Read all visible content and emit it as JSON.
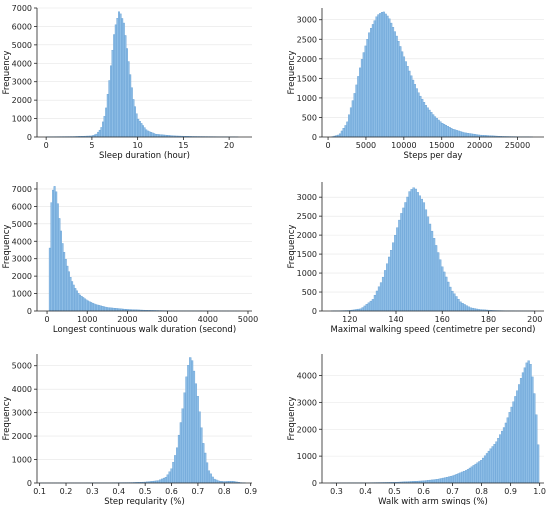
{
  "chart_data": [
    {
      "type": "bar",
      "shape": "histogram",
      "peak": 6800,
      "mode": 8.0,
      "profile": [
        {
          "x": 0,
          "y": 15
        },
        {
          "x": 3,
          "y": 25
        },
        {
          "x": 5,
          "y": 60
        },
        {
          "x": 5.5,
          "y": 150
        },
        {
          "x": 6,
          "y": 450
        },
        {
          "x": 6.5,
          "y": 1300
        },
        {
          "x": 7,
          "y": 3400
        },
        {
          "x": 7.5,
          "y": 5800
        },
        {
          "x": 8,
          "y": 6800
        },
        {
          "x": 8.5,
          "y": 6100
        },
        {
          "x": 9,
          "y": 4100
        },
        {
          "x": 9.5,
          "y": 2100
        },
        {
          "x": 10,
          "y": 1000
        },
        {
          "x": 11,
          "y": 350
        },
        {
          "x": 12,
          "y": 150
        },
        {
          "x": 14,
          "y": 60
        },
        {
          "x": 16,
          "y": 30
        },
        {
          "x": 21,
          "y": 8
        }
      ],
      "xlabel": "Sleep duration (hour)",
      "ylabel": "Frequency",
      "xlim": [
        -1,
        22.5
      ],
      "ylim": [
        0,
        7000
      ],
      "xticks": [
        0,
        5,
        10,
        15,
        20
      ],
      "yticks": [
        0,
        1000,
        2000,
        3000,
        4000,
        5000,
        6000,
        7000
      ],
      "grid": true,
      "legend": "none",
      "bar_color": "#8dbde6",
      "edge_color": "#5e9ad0"
    },
    {
      "type": "bar",
      "shape": "histogram",
      "peak": 3200,
      "mode": 7300,
      "profile": [
        {
          "x": 500,
          "y": 5
        },
        {
          "x": 1500,
          "y": 60
        },
        {
          "x": 2500,
          "y": 350
        },
        {
          "x": 3500,
          "y": 1100
        },
        {
          "x": 4500,
          "y": 2000
        },
        {
          "x": 5500,
          "y": 2700
        },
        {
          "x": 6500,
          "y": 3100
        },
        {
          "x": 7300,
          "y": 3200
        },
        {
          "x": 8000,
          "y": 3050
        },
        {
          "x": 9000,
          "y": 2600
        },
        {
          "x": 10000,
          "y": 2050
        },
        {
          "x": 11000,
          "y": 1550
        },
        {
          "x": 12000,
          "y": 1100
        },
        {
          "x": 13000,
          "y": 780
        },
        {
          "x": 14000,
          "y": 540
        },
        {
          "x": 15000,
          "y": 360
        },
        {
          "x": 16500,
          "y": 200
        },
        {
          "x": 18000,
          "y": 110
        },
        {
          "x": 20000,
          "y": 50
        },
        {
          "x": 23000,
          "y": 15
        },
        {
          "x": 27000,
          "y": 3
        }
      ],
      "xlabel": "Steps per day",
      "ylabel": "Frequency",
      "xlim": [
        -800,
        28500
      ],
      "ylim": [
        0,
        3300
      ],
      "xticks": [
        0,
        5000,
        10000,
        15000,
        20000,
        25000
      ],
      "yticks": [
        0,
        500,
        1000,
        1500,
        2000,
        2500,
        3000
      ],
      "grid": true,
      "legend": "none",
      "bar_color": "#8dbde6",
      "edge_color": "#5e9ad0"
    },
    {
      "type": "bar",
      "shape": "histogram",
      "peak": 7150,
      "mode": 200,
      "profile": [
        {
          "x": 50,
          "y": 2000
        },
        {
          "x": 100,
          "y": 6000
        },
        {
          "x": 150,
          "y": 6900
        },
        {
          "x": 200,
          "y": 7150
        },
        {
          "x": 250,
          "y": 6500
        },
        {
          "x": 300,
          "y": 5400
        },
        {
          "x": 400,
          "y": 3600
        },
        {
          "x": 500,
          "y": 2600
        },
        {
          "x": 600,
          "y": 1800
        },
        {
          "x": 700,
          "y": 1300
        },
        {
          "x": 800,
          "y": 950
        },
        {
          "x": 1000,
          "y": 600
        },
        {
          "x": 1200,
          "y": 380
        },
        {
          "x": 1500,
          "y": 200
        },
        {
          "x": 2000,
          "y": 90
        },
        {
          "x": 2500,
          "y": 40
        },
        {
          "x": 3000,
          "y": 20
        },
        {
          "x": 4000,
          "y": 8
        },
        {
          "x": 4800,
          "y": 3
        }
      ],
      "xlabel": "Longest continuous walk duration (second)",
      "ylabel": "Frequency",
      "xlim": [
        -250,
        5100
      ],
      "ylim": [
        0,
        7400
      ],
      "xticks": [
        0,
        1000,
        2000,
        3000,
        4000,
        5000
      ],
      "yticks": [
        0,
        1000,
        2000,
        3000,
        4000,
        5000,
        6000,
        7000
      ],
      "grid": true,
      "legend": "none",
      "bar_color": "#8dbde6",
      "edge_color": "#5e9ad0"
    },
    {
      "type": "bar",
      "shape": "histogram",
      "peak": 3250,
      "mode": 148,
      "profile": [
        {
          "x": 112,
          "y": 3
        },
        {
          "x": 120,
          "y": 15
        },
        {
          "x": 125,
          "y": 60
        },
        {
          "x": 130,
          "y": 300
        },
        {
          "x": 134,
          "y": 800
        },
        {
          "x": 138,
          "y": 1600
        },
        {
          "x": 142,
          "y": 2500
        },
        {
          "x": 146,
          "y": 3150
        },
        {
          "x": 148,
          "y": 3250
        },
        {
          "x": 152,
          "y": 2850
        },
        {
          "x": 156,
          "y": 2000
        },
        {
          "x": 160,
          "y": 1150
        },
        {
          "x": 164,
          "y": 550
        },
        {
          "x": 168,
          "y": 230
        },
        {
          "x": 172,
          "y": 90
        },
        {
          "x": 176,
          "y": 40
        },
        {
          "x": 182,
          "y": 15
        },
        {
          "x": 190,
          "y": 5
        },
        {
          "x": 200,
          "y": 2
        }
      ],
      "xlabel": "Maximal walking speed (centimetre per second)",
      "ylabel": "Frequency",
      "xlim": [
        108,
        204
      ],
      "ylim": [
        0,
        3400
      ],
      "xticks": [
        120,
        140,
        160,
        180,
        200
      ],
      "yticks": [
        0,
        500,
        1000,
        1500,
        2000,
        2500,
        3000
      ],
      "grid": true,
      "legend": "none",
      "bar_color": "#8dbde6",
      "edge_color": "#5e9ad0"
    },
    {
      "type": "bar",
      "shape": "histogram",
      "peak": 5350,
      "mode": 0.672,
      "profile": [
        {
          "x": 0.1,
          "y": 3
        },
        {
          "x": 0.3,
          "y": 8
        },
        {
          "x": 0.45,
          "y": 20
        },
        {
          "x": 0.5,
          "y": 40
        },
        {
          "x": 0.55,
          "y": 100
        },
        {
          "x": 0.58,
          "y": 250
        },
        {
          "x": 0.6,
          "y": 600
        },
        {
          "x": 0.62,
          "y": 1400
        },
        {
          "x": 0.64,
          "y": 2900
        },
        {
          "x": 0.66,
          "y": 4800
        },
        {
          "x": 0.672,
          "y": 5350
        },
        {
          "x": 0.68,
          "y": 5100
        },
        {
          "x": 0.7,
          "y": 3600
        },
        {
          "x": 0.72,
          "y": 1700
        },
        {
          "x": 0.74,
          "y": 550
        },
        {
          "x": 0.76,
          "y": 180
        },
        {
          "x": 0.78,
          "y": 80
        },
        {
          "x": 0.8,
          "y": 60
        },
        {
          "x": 0.83,
          "y": 80
        },
        {
          "x": 0.86,
          "y": 20
        },
        {
          "x": 0.88,
          "y": 5
        }
      ],
      "xlabel": "Step regularity (%)",
      "ylabel": "Frequency",
      "xlim": [
        0.09,
        0.905
      ],
      "ylim": [
        0,
        5500
      ],
      "xticks": [
        0.1,
        0.2,
        0.3,
        0.4,
        0.5,
        0.6,
        0.7,
        0.8,
        0.9
      ],
      "yticks": [
        0,
        1000,
        2000,
        3000,
        4000,
        5000
      ],
      "grid": true,
      "legend": "none",
      "bar_color": "#8dbde6",
      "edge_color": "#5e9ad0"
    },
    {
      "type": "bar",
      "shape": "histogram",
      "peak": 4550,
      "mode": 0.96,
      "profile": [
        {
          "x": 0.28,
          "y": 3
        },
        {
          "x": 0.4,
          "y": 10
        },
        {
          "x": 0.5,
          "y": 25
        },
        {
          "x": 0.6,
          "y": 80
        },
        {
          "x": 0.65,
          "y": 140
        },
        {
          "x": 0.7,
          "y": 260
        },
        {
          "x": 0.75,
          "y": 480
        },
        {
          "x": 0.8,
          "y": 850
        },
        {
          "x": 0.85,
          "y": 1500
        },
        {
          "x": 0.88,
          "y": 2100
        },
        {
          "x": 0.9,
          "y": 2700
        },
        {
          "x": 0.92,
          "y": 3300
        },
        {
          "x": 0.94,
          "y": 4000
        },
        {
          "x": 0.96,
          "y": 4550
        },
        {
          "x": 0.97,
          "y": 4350
        },
        {
          "x": 0.98,
          "y": 3500
        },
        {
          "x": 0.99,
          "y": 2300
        },
        {
          "x": 0.998,
          "y": 800
        }
      ],
      "xlabel": "Walk with arm swings (%)",
      "ylabel": "Frequency",
      "xlim": [
        0.25,
        1.015
      ],
      "ylim": [
        0,
        4800
      ],
      "xticks": [
        0.3,
        0.4,
        0.5,
        0.6,
        0.7,
        0.8,
        0.9,
        1.0
      ],
      "yticks": [
        0,
        1000,
        2000,
        3000,
        4000
      ],
      "grid": true,
      "legend": "none",
      "bar_color": "#8dbde6",
      "edge_color": "#5e9ad0"
    }
  ]
}
